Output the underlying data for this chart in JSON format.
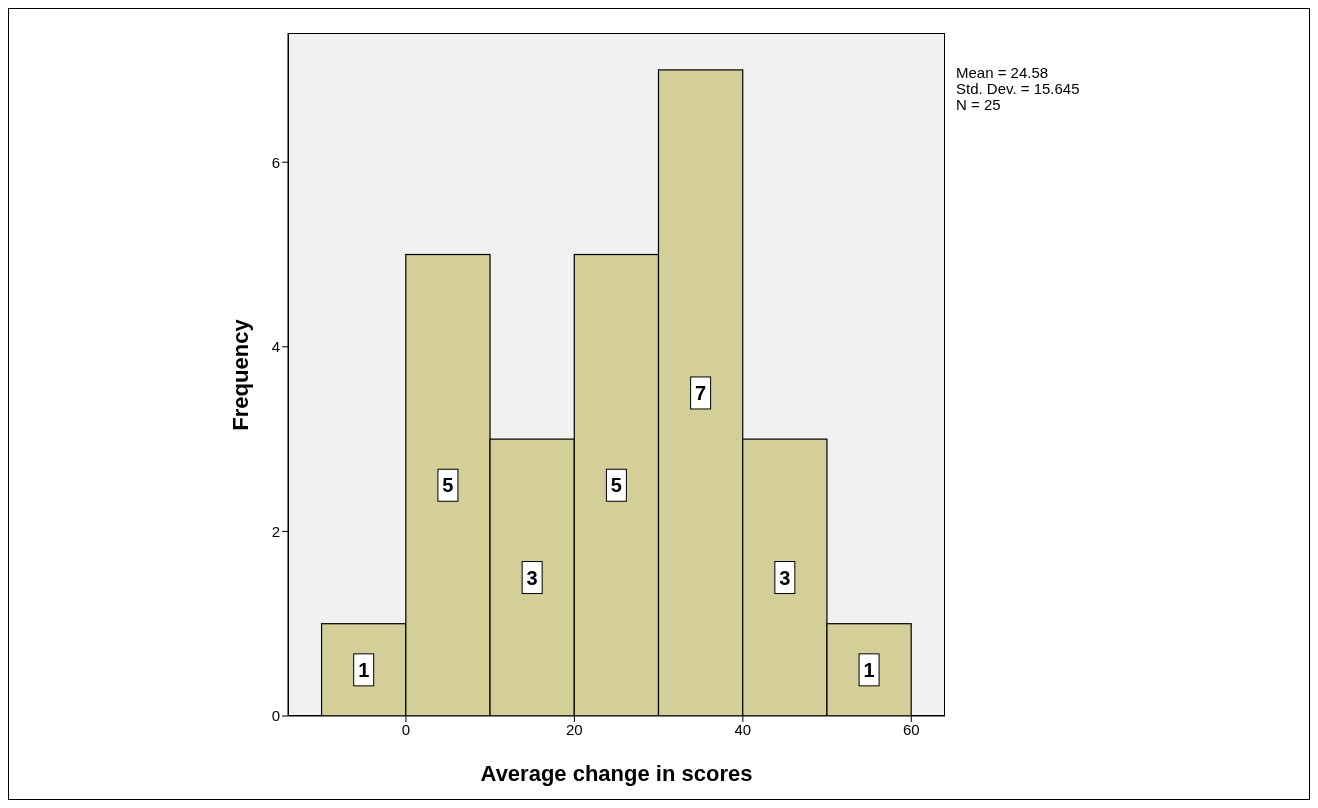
{
  "chart_data": {
    "type": "histogram",
    "xlabel": "Average change in scores",
    "ylabel": "Frequency",
    "bins": [
      -10,
      0,
      10,
      20,
      30,
      40,
      50,
      60
    ],
    "values": [
      1,
      5,
      3,
      5,
      7,
      3,
      1
    ],
    "color": "#d4cf99",
    "xlim": [
      -14,
      64
    ],
    "xticks": [
      0,
      20,
      40,
      60
    ],
    "ylim": [
      0,
      7.4
    ],
    "yticks": [
      0,
      2,
      4,
      6
    ],
    "data_labels": true,
    "grid": false,
    "annotations": [
      "Mean = 24.58",
      "Std. Dev. = 15.645",
      "N = 25"
    ]
  }
}
